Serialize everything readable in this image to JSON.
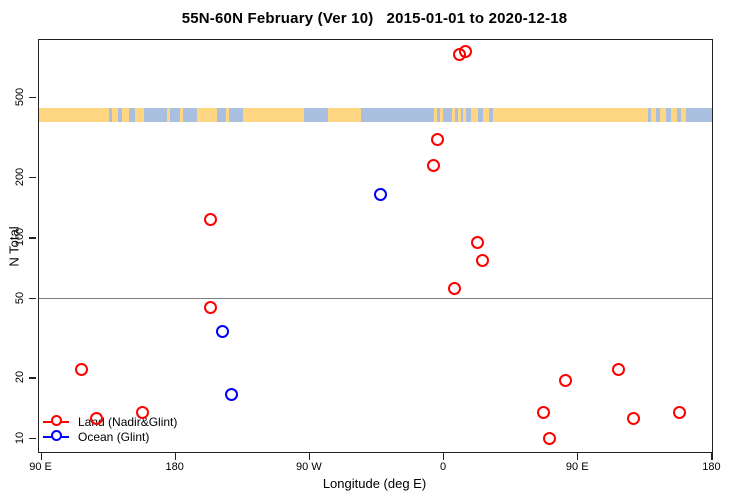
{
  "title": "55N-60N February (Ver 10)   2015-01-01 to 2020-12-18",
  "x_axis": {
    "label": "Longitude (deg E)",
    "ticks": [
      {
        "lon": -270,
        "label": "90 E"
      },
      {
        "lon": -180,
        "label": "180"
      },
      {
        "lon": -90,
        "label": "90 W"
      },
      {
        "lon": 0,
        "label": "0"
      },
      {
        "lon": 90,
        "label": "90 E"
      },
      {
        "lon": 180,
        "label": "180"
      }
    ]
  },
  "y_axis": {
    "label": "N Total",
    "ticks": [
      {
        "value": 10,
        "label": "10"
      },
      {
        "value": 20,
        "label": "20"
      },
      {
        "value": 50,
        "label": "50"
      },
      {
        "value": 100,
        "label": "100"
      },
      {
        "value": 200,
        "label": "200"
      },
      {
        "value": 500,
        "label": "500"
      }
    ]
  },
  "chart_data": {
    "type": "scatter",
    "title": "55N-60N February (Ver 10)   2015-01-01 to 2020-12-18",
    "xlabel": "Longitude (deg E)",
    "ylabel": "N Total",
    "x_range_deg": [
      -271.7,
      179.7
    ],
    "y_scale": "log",
    "y_range": [
      8.6,
      975
    ],
    "grid": "off",
    "legend_position": "bottom-left",
    "wrap_note": "points with lon >= 90 E are repeated at lon-360 on the left side of the wrapped longitude axis",
    "reference_line": {
      "value": 50,
      "color": "#7f7f7f"
    },
    "series": [
      {
        "name": "Land (Nadir&Glint)",
        "color": "#ff0000",
        "points": [
          {
            "lon": 11,
            "n": 820
          },
          {
            "lon": 15,
            "n": 850
          },
          {
            "lon": -4,
            "n": 310
          },
          {
            "lon": -6.5,
            "n": 230
          },
          {
            "lon": -156,
            "n": 123
          },
          {
            "lon": 23,
            "n": 95
          },
          {
            "lon": 26,
            "n": 77
          },
          {
            "lon": 7,
            "n": 56
          },
          {
            "lon": -156.5,
            "n": 45
          },
          {
            "lon": 117,
            "n": 22
          },
          {
            "lon": 82,
            "n": 19.5
          },
          {
            "lon": 158,
            "n": 13.5
          },
          {
            "lon": 67,
            "n": 13.5
          },
          {
            "lon": 127.5,
            "n": 12.5
          },
          {
            "lon": 71,
            "n": 10
          }
        ]
      },
      {
        "name": "Ocean (Glint)",
        "color": "#0000ff",
        "points": [
          {
            "lon": -42,
            "n": 164
          },
          {
            "lon": -148.5,
            "n": 34
          },
          {
            "lon": -142.5,
            "n": 16.5
          }
        ]
      }
    ],
    "map_strip": {
      "description": "coastline band for 55N-60N latitude",
      "ocean_color": "#a9bfe0",
      "land_color": "#ffd782",
      "v_top": 447,
      "v_bottom": 381,
      "land_segments": [
        {
          "from": -271.7,
          "to": -225
        },
        {
          "from": -223,
          "to": -219
        },
        {
          "from": -216,
          "to": -211
        },
        {
          "from": -207,
          "to": -201
        },
        {
          "from": -186,
          "to": -184
        },
        {
          "from": -177,
          "to": -175
        },
        {
          "from": -166,
          "to": -152
        },
        {
          "from": -146,
          "to": -144
        },
        {
          "from": -135,
          "to": -94
        },
        {
          "from": -78,
          "to": -56
        },
        {
          "from": -7,
          "to": -4.5
        },
        {
          "from": -3,
          "to": -1
        },
        {
          "from": 5,
          "to": 7.5
        },
        {
          "from": 9.5,
          "to": 11.5
        },
        {
          "from": 13,
          "to": 15
        },
        {
          "from": 18,
          "to": 23
        },
        {
          "from": 26,
          "to": 30
        },
        {
          "from": 33,
          "to": 137
        },
        {
          "from": 139,
          "to": 142
        },
        {
          "from": 145,
          "to": 149
        },
        {
          "from": 152,
          "to": 156
        },
        {
          "from": 159,
          "to": 162
        }
      ]
    }
  },
  "legend": {
    "items": [
      {
        "label": "Land (Nadir&Glint)",
        "color": "#ff0000"
      },
      {
        "label": "Ocean (Glint)",
        "color": "#0000ff"
      }
    ]
  }
}
